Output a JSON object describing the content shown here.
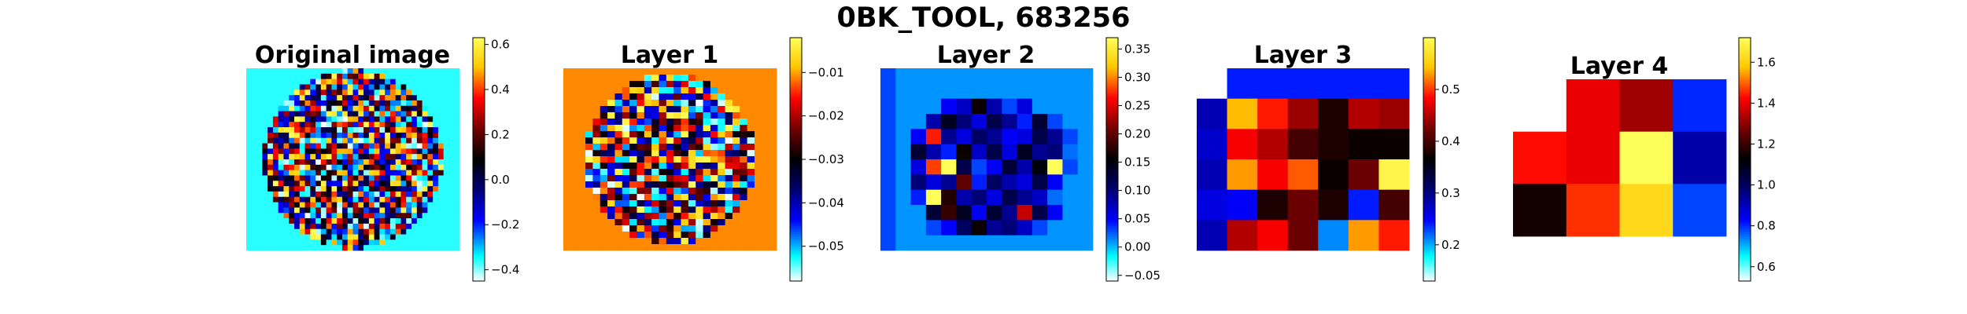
{
  "suptitle": "0BK_TOOL, 683256",
  "chart_data": [
    {
      "type": "heatmap",
      "title": "Original image",
      "kind": "noise_disk",
      "grid": [
        40,
        34
      ],
      "disk_radius_frac": 0.42,
      "background": -0.36,
      "vmin": -0.45,
      "vmax": 0.63,
      "colorbar_ticks": [
        -0.4,
        -0.2,
        0.0,
        0.2,
        0.4,
        0.6
      ],
      "colorbar_labels": [
        "−0.4",
        "−0.2",
        "0.0",
        "0.2",
        "0.4",
        "0.6"
      ],
      "colormap": "jet-white-black"
    },
    {
      "type": "heatmap",
      "title": "Layer 1",
      "kind": "noise_disk",
      "grid": [
        29,
        29
      ],
      "disk_radius_frac": 0.4,
      "background": -0.011,
      "vmin": -0.058,
      "vmax": -0.002,
      "colorbar_ticks": [
        -0.05,
        -0.04,
        -0.03,
        -0.02,
        -0.01
      ],
      "colorbar_labels": [
        "−0.05",
        "−0.04",
        "−0.03",
        "−0.02",
        "−0.01"
      ],
      "colormap": "jet-white-black"
    },
    {
      "type": "heatmap",
      "title": "Layer 2",
      "kind": "matrix",
      "values": [
        [
          0.03,
          0.01,
          0.01,
          0.01,
          0.01,
          0.01,
          0.01,
          0.01,
          0.01,
          0.01,
          0.01,
          0.01,
          0.01,
          0.01
        ],
        [
          0.03,
          0.01,
          0.01,
          0.01,
          0.01,
          0.01,
          0.01,
          0.01,
          0.01,
          0.01,
          0.01,
          0.01,
          0.01,
          0.01
        ],
        [
          0.03,
          0.01,
          0.01,
          0.01,
          0.05,
          0.07,
          0.16,
          0.08,
          0.03,
          0.06,
          0.01,
          0.01,
          0.01,
          0.01
        ],
        [
          0.03,
          0.01,
          0.01,
          0.08,
          0.14,
          0.1,
          0.06,
          0.12,
          0.09,
          0.04,
          0.13,
          0.03,
          0.01,
          0.01
        ],
        [
          0.03,
          0.01,
          0.05,
          0.27,
          0.09,
          0.06,
          0.11,
          0.09,
          0.05,
          0.06,
          0.12,
          0.09,
          0.03,
          0.01
        ],
        [
          0.03,
          0.01,
          0.13,
          0.08,
          0.04,
          0.16,
          0.07,
          0.12,
          0.06,
          0.14,
          0.09,
          0.1,
          0.02,
          0.01
        ],
        [
          0.03,
          0.01,
          0.06,
          0.28,
          0.37,
          0.12,
          0.03,
          0.05,
          0.13,
          0.08,
          0.15,
          0.37,
          0.03,
          0.01
        ],
        [
          0.03,
          0.01,
          0.1,
          0.06,
          0.09,
          0.2,
          0.04,
          0.11,
          0.08,
          0.06,
          0.12,
          0.05,
          0.01,
          0.01
        ],
        [
          0.03,
          0.01,
          0.04,
          0.37,
          0.17,
          0.08,
          0.1,
          0.06,
          0.12,
          0.09,
          0.07,
          0.02,
          0.01,
          0.01
        ],
        [
          0.03,
          0.01,
          0.01,
          0.13,
          0.18,
          0.14,
          0.05,
          0.13,
          0.09,
          0.24,
          0.12,
          0.05,
          0.01,
          0.01
        ],
        [
          0.03,
          0.01,
          0.01,
          0.03,
          0.05,
          0.11,
          0.16,
          0.09,
          0.1,
          0.07,
          0.03,
          0.01,
          0.01,
          0.01
        ],
        [
          0.03,
          0.01,
          0.01,
          0.01,
          0.01,
          0.01,
          0.01,
          0.01,
          0.01,
          0.01,
          0.01,
          0.01,
          0.01,
          0.01
        ]
      ],
      "vmin": -0.06,
      "vmax": 0.37,
      "colorbar_ticks": [
        -0.05,
        0.0,
        0.05,
        0.1,
        0.15,
        0.2,
        0.25,
        0.3,
        0.35
      ],
      "colorbar_labels": [
        "−0.05",
        "0.00",
        "0.05",
        "0.10",
        "0.15",
        "0.20",
        "0.25",
        "0.30",
        "0.35"
      ],
      "colormap": "jet-white-black"
    },
    {
      "type": "heatmap",
      "title": "Layer 3",
      "kind": "matrix",
      "col_offset": 1,
      "values": [
        [
          null,
          0.24,
          0.24,
          0.24,
          0.24,
          0.24,
          0.24
        ],
        [
          0.28,
          0.54,
          0.49,
          0.44,
          0.38,
          0.45,
          0.44
        ],
        [
          0.27,
          0.48,
          0.45,
          0.4,
          0.38,
          0.37,
          0.37
        ],
        [
          0.28,
          0.53,
          0.48,
          0.51,
          0.37,
          0.42,
          0.59
        ],
        [
          0.26,
          0.25,
          0.38,
          0.42,
          0.38,
          0.24,
          0.4
        ],
        [
          0.28,
          0.45,
          0.48,
          0.42,
          0.21,
          0.53,
          0.49
        ]
      ],
      "vmin": 0.13,
      "vmax": 0.6,
      "colorbar_ticks": [
        0.2,
        0.3,
        0.4,
        0.5
      ],
      "colorbar_labels": [
        "0.2",
        "0.3",
        "0.4",
        "0.5"
      ],
      "colormap": "jet-white-black"
    },
    {
      "type": "heatmap",
      "title": "Layer 4",
      "kind": "matrix",
      "values": [
        [
          null,
          1.4,
          1.32,
          0.8
        ],
        [
          1.43,
          1.4,
          1.72,
          0.92
        ],
        [
          1.15,
          1.46,
          1.62,
          0.78
        ]
      ],
      "vmin": 0.53,
      "vmax": 1.72,
      "colorbar_ticks": [
        0.6,
        0.8,
        1.0,
        1.2,
        1.4,
        1.6
      ],
      "colorbar_labels": [
        "0.6",
        "0.8",
        "1.0",
        "1.2",
        "1.4",
        "1.6"
      ],
      "colormap": "jet-white-black"
    }
  ]
}
